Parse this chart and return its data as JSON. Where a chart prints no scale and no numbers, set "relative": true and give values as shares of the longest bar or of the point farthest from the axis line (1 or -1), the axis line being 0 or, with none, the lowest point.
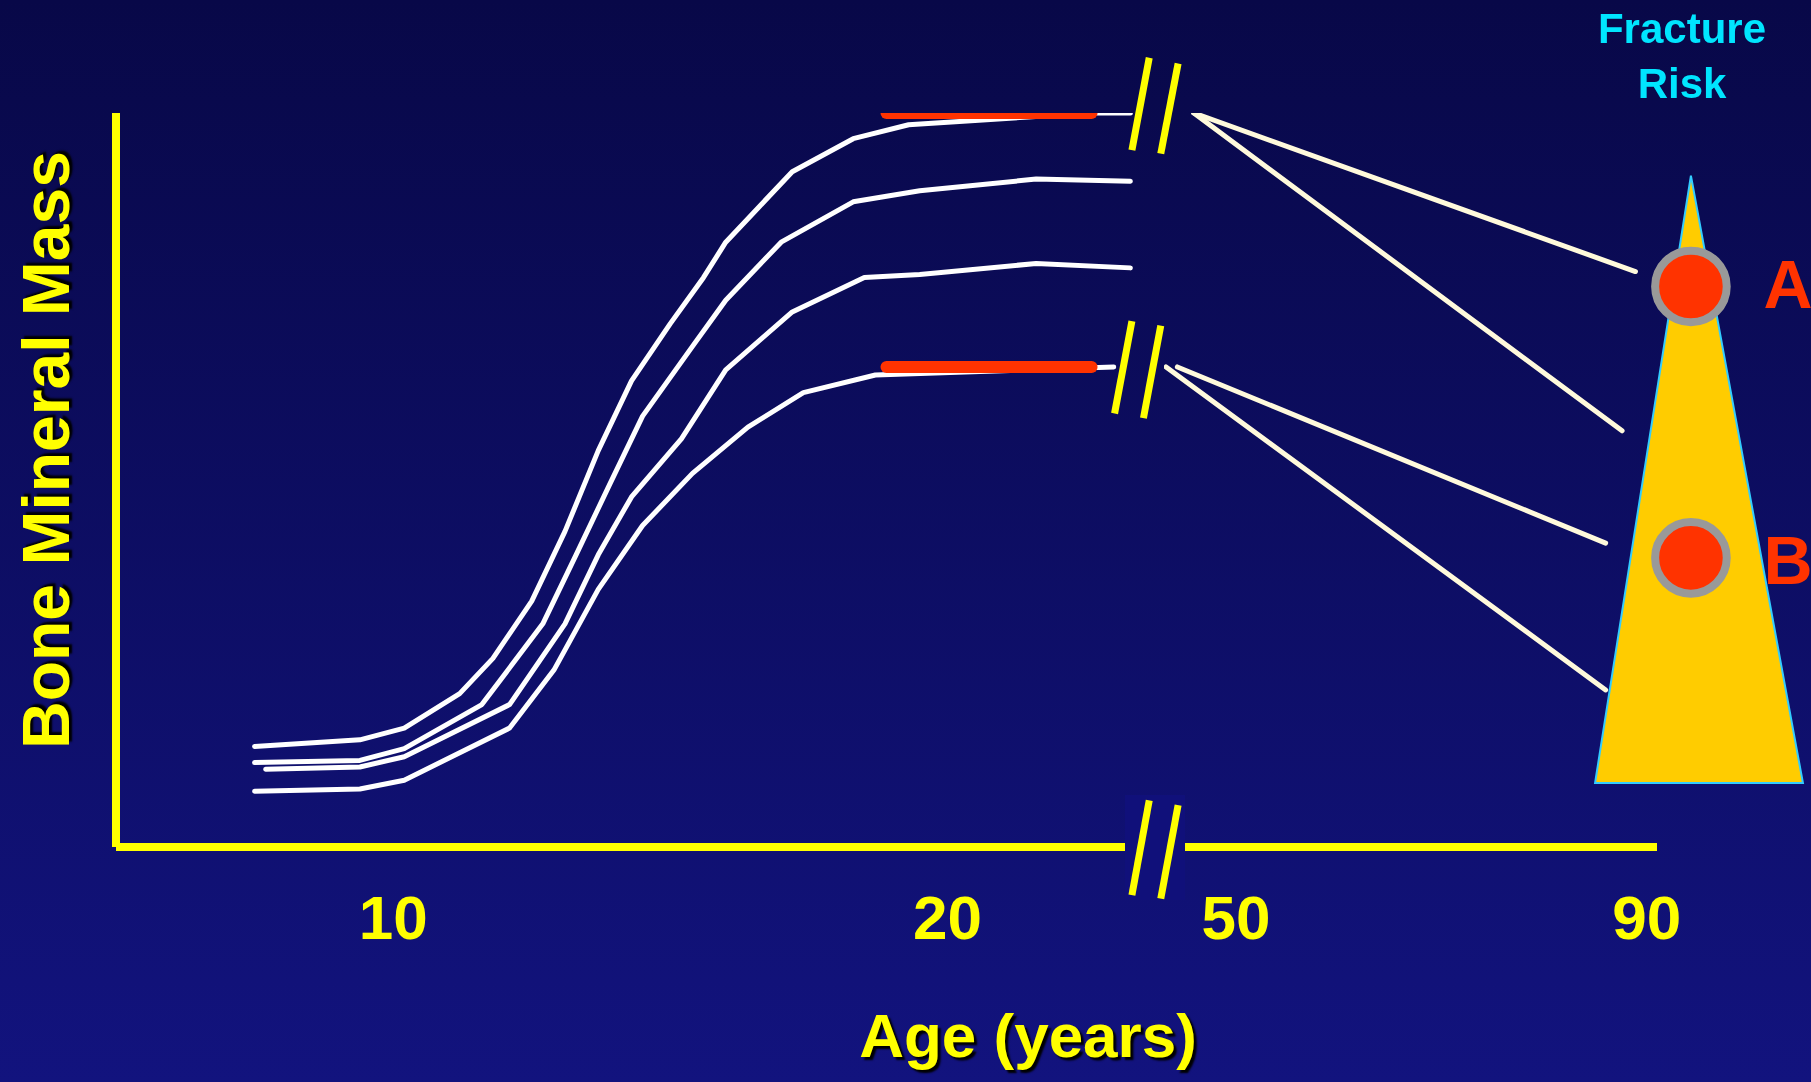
{
  "chart_data": [
    {
      "type": "line",
      "ylabel": "Bone Mineral Mass",
      "xlabel": "Age (years)",
      "relative": true,
      "xlim": [
        5,
        23.6
      ],
      "xticks": [
        10,
        20
      ],
      "tick_labels": "x",
      "series": [
        {
          "color": "#ffffff",
          "x": [
            7.5,
            9.4,
            10.2,
            11.2,
            11.8,
            12.5,
            13.1,
            13.7,
            14.3,
            15.0,
            15.6,
            16.0,
            16.6,
            17.2,
            18.3,
            19.3,
            20.6,
            22.6,
            23.3
          ],
          "values": [
            0.137,
            0.146,
            0.162,
            0.209,
            0.257,
            0.335,
            0.43,
            0.54,
            0.635,
            0.713,
            0.776,
            0.824,
            0.872,
            0.92,
            0.965,
            0.984,
            null,
            1,
            1
          ]
        },
        {
          "color": "#ffffff",
          "x": [
            7.5,
            9.4,
            10.2,
            11.6,
            12.7,
            13.3,
            13.9,
            14.5,
            15.4,
            16.0,
            17.0,
            18.3,
            19.5,
            21.6,
            23.3
          ],
          "values": [
            0.115,
            0.118,
            0.134,
            0.194,
            0.304,
            0.398,
            0.493,
            0.587,
            0.682,
            0.745,
            0.824,
            0.879,
            0.894,
            0.91,
            0.907
          ]
        },
        {
          "color": "#ffffff",
          "x": [
            7.7,
            9.4,
            10.2,
            12.1,
            13.1,
            13.7,
            14.3,
            15.2,
            16.0,
            17.2,
            18.5,
            19.5,
            21.6,
            23.3
          ],
          "values": [
            0.106,
            0.109,
            0.123,
            0.194,
            0.304,
            0.398,
            0.477,
            0.556,
            0.65,
            0.729,
            0.776,
            0.78,
            0.795,
            0.789
          ]
        },
        {
          "color": "#ffffff",
          "x": [
            7.5,
            9.4,
            10.2,
            12.1,
            12.9,
            13.7,
            14.5,
            15.4,
            16.4,
            17.4,
            18.7,
            20.6,
            23.0
          ],
          "values": [
            0.076,
            0.079,
            0.091,
            0.162,
            0.241,
            0.351,
            0.438,
            0.509,
            0.572,
            0.619,
            0.643,
            null,
            0.654
          ]
        },
        {
          "color": "#ff3300",
          "x": [
            18.9,
            22.6
          ],
          "values": [
            1,
            1
          ]
        },
        {
          "color": "#ff3300",
          "x": [
            18.9,
            22.6
          ],
          "values": [
            0.654,
            0.654
          ]
        }
      ]
    },
    {
      "type": "line",
      "relative": true,
      "xlim": [
        43,
        91
      ],
      "xticks": [
        50,
        90
      ],
      "tick_labels": "x",
      "annotations": [
        "Fracture Risk",
        "A",
        "B"
      ],
      "series": [
        {
          "color": "#fffadc",
          "x": [
            45.9,
            88.9
          ],
          "values": [
            1,
            0.784
          ]
        },
        {
          "color": "#fffadc",
          "x": [
            45.9,
            87.6
          ],
          "values": [
            1,
            0.567
          ]
        },
        {
          "color": "#fffadc",
          "x": [
            44.3,
            86.0
          ],
          "values": [
            0.654,
            0.414
          ]
        },
        {
          "color": "#fffadc",
          "x": [
            43.2,
            86.0
          ],
          "values": [
            0.654,
            0.214
          ]
        }
      ]
    }
  ]
}
